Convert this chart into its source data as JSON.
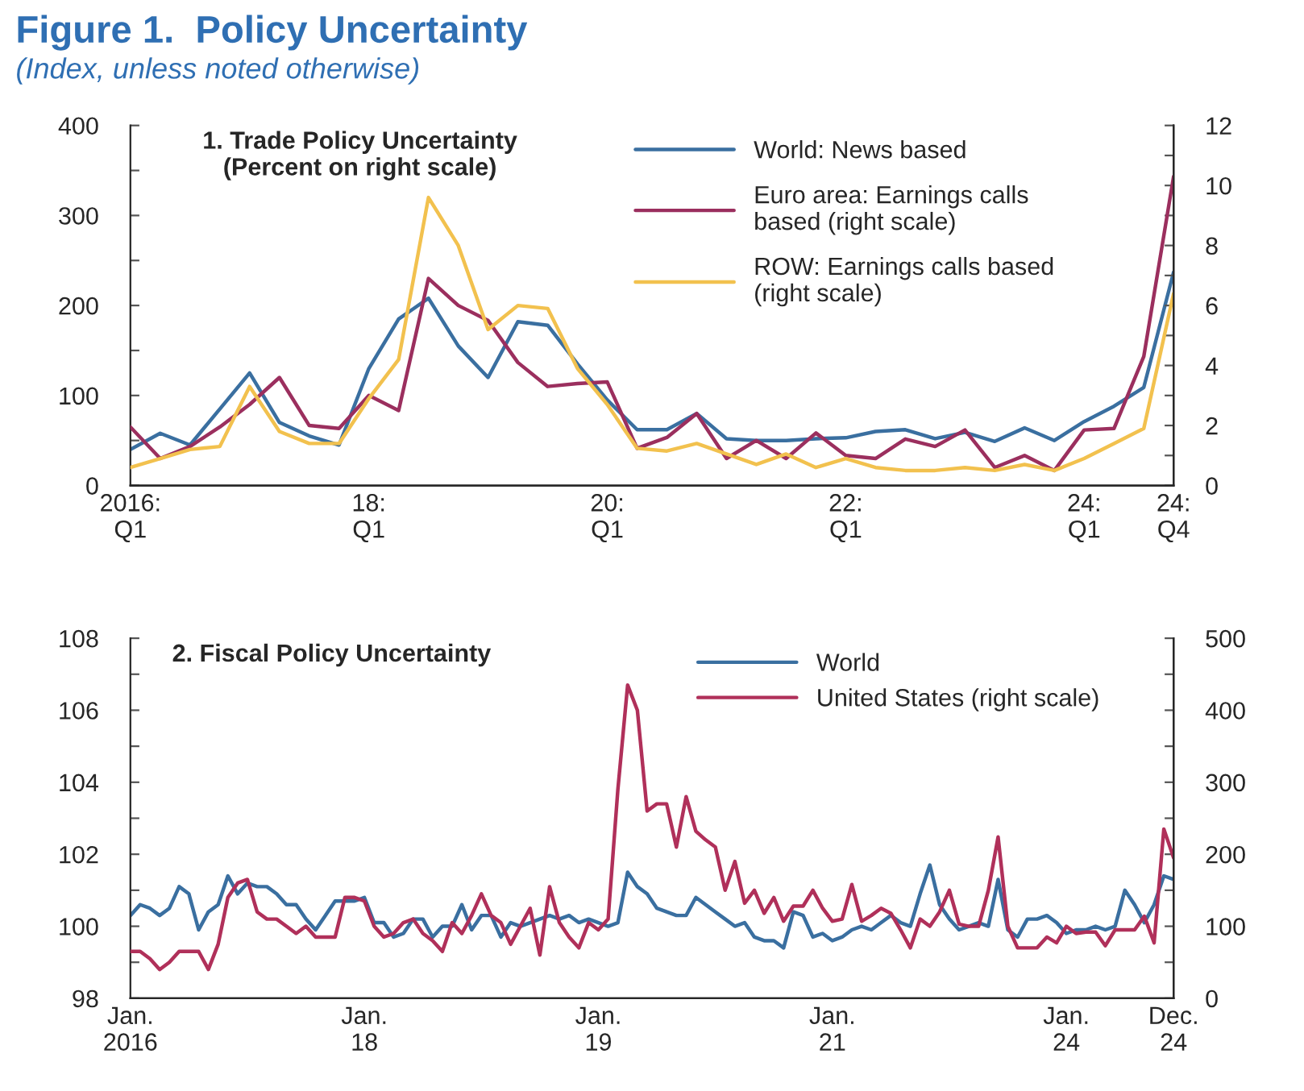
{
  "chart_data": [
    {
      "type": "line",
      "title": "Figure 1.  Policy Uncertainty",
      "subtitle": "(Index, unless noted otherwise)",
      "annotations": [
        "1. Trade Policy Uncertainty\n(Percent on right scale)"
      ],
      "categories": [
        "2016:\nQ1",
        null,
        null,
        null,
        null,
        null,
        null,
        null,
        "18:\nQ1",
        null,
        null,
        null,
        null,
        null,
        null,
        null,
        "20:\nQ1",
        null,
        null,
        null,
        null,
        null,
        null,
        null,
        "22:\nQ1",
        null,
        null,
        null,
        null,
        null,
        null,
        null,
        "24:\nQ1",
        null,
        null,
        "24:\nQ4"
      ],
      "series": [
        {
          "name": "World: News based",
          "color": "#3a6fa0",
          "values": [
            40,
            58,
            45,
            85,
            125,
            70,
            55,
            45,
            130,
            185,
            208,
            155,
            120,
            182,
            178,
            135,
            95,
            62,
            62,
            80,
            52,
            50,
            50,
            52,
            53,
            60,
            62,
            52,
            59,
            49,
            64,
            50,
            71,
            88,
            109,
            237
          ]
        },
        {
          "name": "Euro area: Earnings calls\nbased (right scale)",
          "color": "#9b2f5e",
          "axis": "y2",
          "values": [
            1.95,
            0.9,
            1.3,
            1.95,
            2.7,
            3.6,
            2.0,
            1.9,
            3.0,
            2.5,
            6.9,
            6.0,
            5.5,
            4.1,
            3.3,
            3.4,
            3.45,
            1.24,
            1.6,
            2.4,
            0.9,
            1.5,
            0.9,
            1.75,
            1.0,
            0.9,
            1.55,
            1.3,
            1.85,
            0.6,
            1.0,
            0.5,
            1.85,
            1.9,
            4.3,
            10.3
          ]
        },
        {
          "name": "ROW: Earnings calls based\n(right scale)",
          "color": "#f2c14e",
          "axis": "y2",
          "values": [
            0.6,
            0.9,
            1.2,
            1.3,
            3.3,
            1.8,
            1.4,
            1.4,
            2.9,
            4.2,
            9.6,
            8.0,
            5.2,
            6.0,
            5.9,
            3.9,
            2.7,
            1.24,
            1.15,
            1.4,
            1.05,
            0.7,
            1.05,
            0.6,
            0.9,
            0.6,
            0.5,
            0.5,
            0.6,
            0.5,
            0.7,
            0.5,
            0.9,
            1.4,
            1.9,
            6.4
          ]
        }
      ],
      "ylim": [
        0,
        400
      ],
      "yticks": [
        0,
        {
          "value": 50,
          "label": null
        },
        100,
        {
          "value": 150,
          "label": null
        },
        200,
        {
          "value": 250,
          "label": null
        },
        300,
        {
          "value": 350,
          "label": null
        },
        400
      ],
      "y2lim": [
        0,
        12
      ],
      "y2ticks": [
        0,
        {
          "value": 1,
          "label": null
        },
        2,
        {
          "value": 3,
          "label": null
        },
        4,
        {
          "value": 5,
          "label": null
        },
        6,
        {
          "value": 7,
          "label": null
        },
        8,
        {
          "value": 9,
          "label": null
        },
        10,
        {
          "value": 11,
          "label": null
        },
        12
      ],
      "legend": "top right",
      "grid": false
    },
    {
      "type": "line",
      "title": "2. Fiscal Policy Uncertainty",
      "categories": [
        "Jan.\n2016",
        null,
        null,
        null,
        null,
        null,
        null,
        null,
        null,
        null,
        null,
        null,
        null,
        null,
        null,
        null,
        null,
        null,
        null,
        null,
        null,
        null,
        null,
        null,
        "Jan.\n18",
        null,
        null,
        null,
        null,
        null,
        null,
        null,
        null,
        null,
        null,
        null,
        null,
        null,
        null,
        null,
        null,
        null,
        null,
        null,
        null,
        null,
        null,
        null,
        "Jan.\n19",
        null,
        null,
        null,
        null,
        null,
        null,
        null,
        null,
        null,
        null,
        null,
        null,
        null,
        null,
        null,
        null,
        null,
        null,
        null,
        null,
        null,
        null,
        null,
        "Jan.\n21",
        null,
        null,
        null,
        null,
        null,
        null,
        null,
        null,
        null,
        null,
        null,
        null,
        null,
        null,
        null,
        null,
        null,
        null,
        null,
        null,
        null,
        null,
        null,
        "Jan.\n24",
        null,
        null,
        null,
        null,
        null,
        null,
        null,
        null,
        null,
        null,
        "Dec.\n24"
      ],
      "series": [
        {
          "name": "World",
          "color": "#3a6fa0",
          "values": [
            100.3,
            100.6,
            100.5,
            100.3,
            100.5,
            101.1,
            100.9,
            99.9,
            100.4,
            100.6,
            101.4,
            100.9,
            101.2,
            101.1,
            101.1,
            100.9,
            100.6,
            100.6,
            100.2,
            99.9,
            100.3,
            100.7,
            100.7,
            100.7,
            100.8,
            100.1,
            100.1,
            99.7,
            99.8,
            100.2,
            100.2,
            99.7,
            100.0,
            100.0,
            100.6,
            99.9,
            100.3,
            100.3,
            99.7,
            100.1,
            100.0,
            100.1,
            100.2,
            100.3,
            100.2,
            100.3,
            100.1,
            100.2,
            100.1,
            100.0,
            100.1,
            101.5,
            101.1,
            100.9,
            100.5,
            100.4,
            100.3,
            100.3,
            100.8,
            100.6,
            100.4,
            100.2,
            100.0,
            100.1,
            99.7,
            99.6,
            99.6,
            99.4,
            100.4,
            100.3,
            99.7,
            99.8,
            99.6,
            99.7,
            99.9,
            100.0,
            99.9,
            100.1,
            100.3,
            100.1,
            100.0,
            100.9,
            101.7,
            100.6,
            100.2,
            99.9,
            100.0,
            100.1,
            100.0,
            101.3,
            99.9,
            99.7,
            100.2,
            100.2,
            100.3,
            100.1,
            99.8,
            99.9,
            99.9,
            100.0,
            99.9,
            100.0,
            101.0,
            100.6,
            100.1,
            100.6,
            101.4,
            101.3
          ]
        },
        {
          "name": "United States (right scale)",
          "color": "#b0305a",
          "axis": "y2",
          "values": [
            65,
            65,
            55,
            40,
            50,
            65,
            65,
            65,
            40,
            75,
            140,
            160,
            165,
            120,
            110,
            110,
            100,
            90,
            100,
            85,
            85,
            85,
            140,
            140,
            135,
            100,
            85,
            90,
            105,
            110,
            90,
            80,
            65,
            105,
            90,
            115,
            145,
            115,
            105,
            75,
            100,
            125,
            60,
            155,
            105,
            85,
            70,
            105,
            95,
            110,
            290,
            435,
            400,
            260,
            270,
            270,
            210,
            280,
            232,
            220,
            210,
            150,
            190,
            132,
            150,
            118,
            140,
            107,
            128,
            128,
            150,
            125,
            107,
            110,
            158,
            107,
            115,
            125,
            118,
            95,
            70,
            110,
            100,
            120,
            150,
            103,
            100,
            100,
            150,
            224,
            100,
            70,
            70,
            70,
            85,
            77,
            100,
            90,
            92,
            92,
            73,
            95,
            95,
            95,
            114,
            77,
            235,
            195
          ]
        }
      ],
      "ylim": [
        98,
        108
      ],
      "yticks": [
        98,
        {
          "value": 99,
          "label": null
        },
        100,
        {
          "value": 101,
          "label": null
        },
        102,
        {
          "value": 103,
          "label": null
        },
        104,
        {
          "value": 105,
          "label": null
        },
        106,
        {
          "value": 107,
          "label": null
        },
        108
      ],
      "y2lim": [
        0,
        500
      ],
      "y2ticks": [
        0,
        {
          "value": 50,
          "label": null
        },
        100,
        {
          "value": 150,
          "label": null
        },
        200,
        {
          "value": 250,
          "label": null
        },
        300,
        {
          "value": 350,
          "label": null
        },
        400,
        {
          "value": 450,
          "label": null
        },
        500
      ],
      "legend": "top right",
      "grid": false
    }
  ]
}
